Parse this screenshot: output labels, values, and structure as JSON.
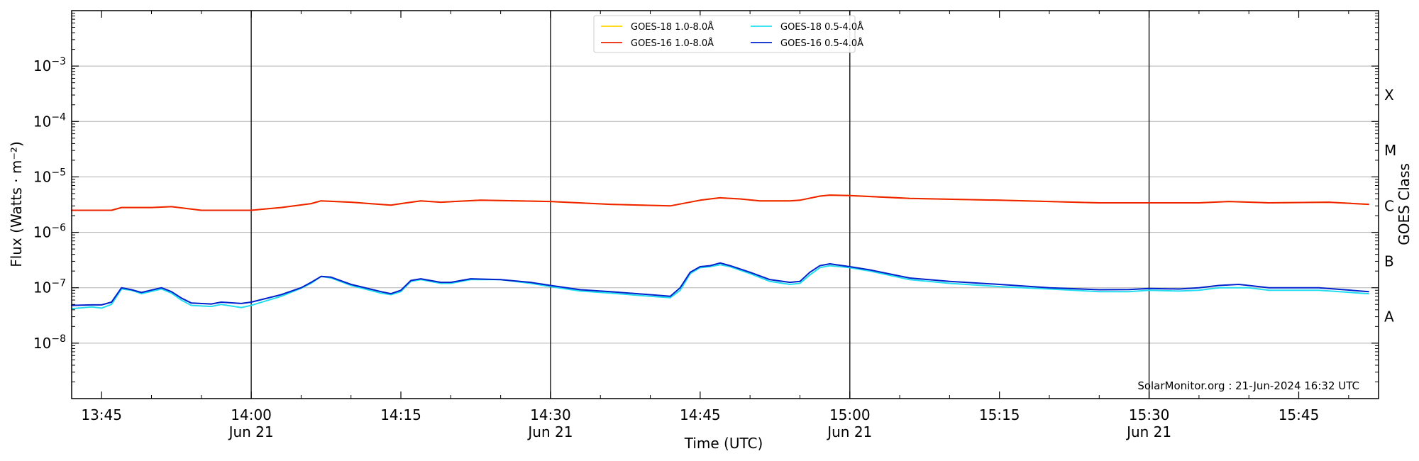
{
  "chart_data": {
    "type": "line",
    "xlabel": "Time (UTC)",
    "ylabel": "Flux (Watts · m⁻²)",
    "ylabel_right": "GOES Class",
    "ylog": true,
    "ylim": [
      1e-09,
      0.01
    ],
    "xlim": [
      "13:42",
      "15:53"
    ],
    "grid": "y-major",
    "legend_position": "top-center",
    "annotation": "SolarMonitor.org : 21-Jun-2024 16:32 UTC",
    "y_ticks": [
      {
        "value": 1e-08,
        "base": "10",
        "exp": "−8"
      },
      {
        "value": 1e-07,
        "base": "10",
        "exp": "−7"
      },
      {
        "value": 1e-06,
        "base": "10",
        "exp": "−6"
      },
      {
        "value": 1e-05,
        "base": "10",
        "exp": "−5"
      },
      {
        "value": 0.0001,
        "base": "10",
        "exp": "−4"
      },
      {
        "value": 0.001,
        "base": "10",
        "exp": "−3"
      }
    ],
    "x_ticks": [
      {
        "time": "13:45",
        "label": "13:45",
        "sub": ""
      },
      {
        "time": "14:00",
        "label": "14:00",
        "sub": "Jun 21"
      },
      {
        "time": "14:15",
        "label": "14:15",
        "sub": ""
      },
      {
        "time": "14:30",
        "label": "14:30",
        "sub": "Jun 21"
      },
      {
        "time": "14:45",
        "label": "14:45",
        "sub": ""
      },
      {
        "time": "15:00",
        "label": "15:00",
        "sub": "Jun 21"
      },
      {
        "time": "15:15",
        "label": "15:15",
        "sub": ""
      },
      {
        "time": "15:30",
        "label": "15:30",
        "sub": "Jun 21"
      },
      {
        "time": "15:45",
        "label": "15:45",
        "sub": ""
      }
    ],
    "day_lines": [
      "14:00",
      "14:30",
      "15:00",
      "15:30"
    ],
    "goes_classes": [
      {
        "label": "A",
        "value": 3e-08
      },
      {
        "label": "B",
        "value": 3e-07
      },
      {
        "label": "C",
        "value": 3e-06
      },
      {
        "label": "M",
        "value": 3e-05
      },
      {
        "label": "X",
        "value": 0.0003
      }
    ],
    "legend": [
      {
        "name": "GOES-18 1.0-8.0Å",
        "color": "#ffd700"
      },
      {
        "name": "GOES-18 0.5-4.0Å",
        "color": "#22ddee"
      },
      {
        "name": "GOES-16 1.0-8.0Å",
        "color": "#ee2200"
      },
      {
        "name": "GOES-16 0.5-4.0Å",
        "color": "#0022cc"
      }
    ],
    "series": [
      {
        "name": "GOES-18 1.0-8.0Å",
        "color": "#ffd700",
        "points": [
          [
            "13:42",
            2.5e-06
          ],
          [
            "13:46",
            2.5e-06
          ],
          [
            "13:47",
            2.8e-06
          ],
          [
            "13:50",
            2.8e-06
          ],
          [
            "13:52",
            2.9e-06
          ],
          [
            "13:55",
            2.5e-06
          ],
          [
            "14:00",
            2.5e-06
          ],
          [
            "14:03",
            2.8e-06
          ],
          [
            "14:06",
            3.3e-06
          ],
          [
            "14:07",
            3.7e-06
          ],
          [
            "14:10",
            3.5e-06
          ],
          [
            "14:14",
            3.1e-06
          ],
          [
            "14:15",
            3.3e-06
          ],
          [
            "14:17",
            3.7e-06
          ],
          [
            "14:19",
            3.5e-06
          ],
          [
            "14:23",
            3.8e-06
          ],
          [
            "14:30",
            3.6e-06
          ],
          [
            "14:36",
            3.2e-06
          ],
          [
            "14:42",
            3e-06
          ],
          [
            "14:45",
            3.8e-06
          ],
          [
            "14:46",
            4e-06
          ],
          [
            "14:47",
            4.2e-06
          ],
          [
            "14:49",
            4e-06
          ],
          [
            "14:51",
            3.7e-06
          ],
          [
            "14:54",
            3.7e-06
          ],
          [
            "14:55",
            3.8e-06
          ],
          [
            "14:57",
            4.5e-06
          ],
          [
            "14:58",
            4.7e-06
          ],
          [
            "15:00",
            4.6e-06
          ],
          [
            "15:06",
            4.1e-06
          ],
          [
            "15:15",
            3.8e-06
          ],
          [
            "15:25",
            3.4e-06
          ],
          [
            "15:30",
            3.4e-06
          ],
          [
            "15:35",
            3.4e-06
          ],
          [
            "15:38",
            3.6e-06
          ],
          [
            "15:42",
            3.4e-06
          ],
          [
            "15:48",
            3.5e-06
          ],
          [
            "15:52",
            3.2e-06
          ]
        ]
      },
      {
        "name": "GOES-16 1.0-8.0Å",
        "color": "#ee2200",
        "points": [
          [
            "13:42",
            2.5e-06
          ],
          [
            "13:46",
            2.5e-06
          ],
          [
            "13:47",
            2.8e-06
          ],
          [
            "13:50",
            2.8e-06
          ],
          [
            "13:52",
            2.9e-06
          ],
          [
            "13:55",
            2.5e-06
          ],
          [
            "14:00",
            2.5e-06
          ],
          [
            "14:03",
            2.8e-06
          ],
          [
            "14:06",
            3.3e-06
          ],
          [
            "14:07",
            3.7e-06
          ],
          [
            "14:10",
            3.5e-06
          ],
          [
            "14:14",
            3.1e-06
          ],
          [
            "14:15",
            3.3e-06
          ],
          [
            "14:17",
            3.7e-06
          ],
          [
            "14:19",
            3.5e-06
          ],
          [
            "14:23",
            3.8e-06
          ],
          [
            "14:30",
            3.6e-06
          ],
          [
            "14:36",
            3.2e-06
          ],
          [
            "14:42",
            3e-06
          ],
          [
            "14:45",
            3.8e-06
          ],
          [
            "14:46",
            4e-06
          ],
          [
            "14:47",
            4.2e-06
          ],
          [
            "14:49",
            4e-06
          ],
          [
            "14:51",
            3.7e-06
          ],
          [
            "14:54",
            3.7e-06
          ],
          [
            "14:55",
            3.8e-06
          ],
          [
            "14:57",
            4.5e-06
          ],
          [
            "14:58",
            4.7e-06
          ],
          [
            "15:00",
            4.6e-06
          ],
          [
            "15:06",
            4.1e-06
          ],
          [
            "15:15",
            3.8e-06
          ],
          [
            "15:25",
            3.4e-06
          ],
          [
            "15:30",
            3.4e-06
          ],
          [
            "15:35",
            3.4e-06
          ],
          [
            "15:38",
            3.6e-06
          ],
          [
            "15:42",
            3.4e-06
          ],
          [
            "15:48",
            3.5e-06
          ],
          [
            "15:52",
            3.2e-06
          ]
        ]
      },
      {
        "name": "GOES-18 0.5-4.0Å",
        "color": "#22ddee",
        "points": [
          [
            "13:42",
            4.2e-08
          ],
          [
            "13:44",
            4.5e-08
          ],
          [
            "13:45",
            4.3e-08
          ],
          [
            "13:46",
            5e-08
          ],
          [
            "13:47",
            9.5e-08
          ],
          [
            "13:48",
            9e-08
          ],
          [
            "13:49",
            7.8e-08
          ],
          [
            "13:51",
            9.5e-08
          ],
          [
            "13:52",
            8e-08
          ],
          [
            "13:53",
            6e-08
          ],
          [
            "13:54",
            4.8e-08
          ],
          [
            "13:56",
            4.6e-08
          ],
          [
            "13:57",
            5e-08
          ],
          [
            "13:59",
            4.4e-08
          ],
          [
            "14:00",
            4.8e-08
          ],
          [
            "14:03",
            7e-08
          ],
          [
            "14:05",
            9.8e-08
          ],
          [
            "14:06",
            1.2e-07
          ],
          [
            "14:07",
            1.6e-07
          ],
          [
            "14:08",
            1.5e-07
          ],
          [
            "14:10",
            1.1e-07
          ],
          [
            "14:13",
            8e-08
          ],
          [
            "14:14",
            7.5e-08
          ],
          [
            "14:15",
            8.5e-08
          ],
          [
            "14:16",
            1.3e-07
          ],
          [
            "14:17",
            1.4e-07
          ],
          [
            "14:19",
            1.2e-07
          ],
          [
            "14:20",
            1.2e-07
          ],
          [
            "14:22",
            1.4e-07
          ],
          [
            "14:25",
            1.4e-07
          ],
          [
            "14:28",
            1.2e-07
          ],
          [
            "14:30",
            1.05e-07
          ],
          [
            "14:33",
            8.7e-08
          ],
          [
            "14:36",
            8e-08
          ],
          [
            "14:40",
            7e-08
          ],
          [
            "14:42",
            6.6e-08
          ],
          [
            "14:43",
            9e-08
          ],
          [
            "14:44",
            1.8e-07
          ],
          [
            "14:45",
            2.3e-07
          ],
          [
            "14:46",
            2.4e-07
          ],
          [
            "14:47",
            2.6e-07
          ],
          [
            "14:48",
            2.4e-07
          ],
          [
            "14:50",
            1.8e-07
          ],
          [
            "14:52",
            1.3e-07
          ],
          [
            "14:54",
            1.15e-07
          ],
          [
            "14:55",
            1.2e-07
          ],
          [
            "14:56",
            1.7e-07
          ],
          [
            "14:57",
            2.3e-07
          ],
          [
            "14:58",
            2.5e-07
          ],
          [
            "15:00",
            2.3e-07
          ],
          [
            "15:02",
            2e-07
          ],
          [
            "15:06",
            1.4e-07
          ],
          [
            "15:10",
            1.2e-07
          ],
          [
            "15:15",
            1.05e-07
          ],
          [
            "15:20",
            9.5e-08
          ],
          [
            "15:25",
            8.5e-08
          ],
          [
            "15:28",
            8.5e-08
          ],
          [
            "15:30",
            9e-08
          ],
          [
            "15:33",
            8.7e-08
          ],
          [
            "15:35",
            9e-08
          ],
          [
            "15:37",
            1e-07
          ],
          [
            "15:40",
            1e-07
          ],
          [
            "15:42",
            9e-08
          ],
          [
            "15:47",
            9e-08
          ],
          [
            "15:52",
            7.8e-08
          ]
        ]
      },
      {
        "name": "GOES-16 0.5-4.0Å",
        "color": "#0022cc",
        "points": [
          [
            "13:42",
            4.8e-08
          ],
          [
            "13:44",
            4.9e-08
          ],
          [
            "13:45",
            4.9e-08
          ],
          [
            "13:46",
            5.5e-08
          ],
          [
            "13:47",
            1e-07
          ],
          [
            "13:48",
            9.2e-08
          ],
          [
            "13:49",
            8.2e-08
          ],
          [
            "13:51",
            1e-07
          ],
          [
            "13:52",
            8.5e-08
          ],
          [
            "13:53",
            6.5e-08
          ],
          [
            "13:54",
            5.3e-08
          ],
          [
            "13:56",
            5.1e-08
          ],
          [
            "13:57",
            5.5e-08
          ],
          [
            "13:59",
            5.2e-08
          ],
          [
            "14:00",
            5.5e-08
          ],
          [
            "14:03",
            7.5e-08
          ],
          [
            "14:05",
            1e-07
          ],
          [
            "14:06",
            1.25e-07
          ],
          [
            "14:07",
            1.6e-07
          ],
          [
            "14:08",
            1.55e-07
          ],
          [
            "14:10",
            1.15e-07
          ],
          [
            "14:13",
            8.5e-08
          ],
          [
            "14:14",
            7.8e-08
          ],
          [
            "14:15",
            9e-08
          ],
          [
            "14:16",
            1.35e-07
          ],
          [
            "14:17",
            1.45e-07
          ],
          [
            "14:19",
            1.25e-07
          ],
          [
            "14:20",
            1.25e-07
          ],
          [
            "14:22",
            1.45e-07
          ],
          [
            "14:25",
            1.4e-07
          ],
          [
            "14:28",
            1.25e-07
          ],
          [
            "14:30",
            1.1e-07
          ],
          [
            "14:33",
            9.2e-08
          ],
          [
            "14:36",
            8.5e-08
          ],
          [
            "14:40",
            7.5e-08
          ],
          [
            "14:42",
            7e-08
          ],
          [
            "14:43",
            1e-07
          ],
          [
            "14:44",
            1.9e-07
          ],
          [
            "14:45",
            2.4e-07
          ],
          [
            "14:46",
            2.5e-07
          ],
          [
            "14:47",
            2.8e-07
          ],
          [
            "14:48",
            2.5e-07
          ],
          [
            "14:50",
            1.9e-07
          ],
          [
            "14:52",
            1.4e-07
          ],
          [
            "14:54",
            1.25e-07
          ],
          [
            "14:55",
            1.3e-07
          ],
          [
            "14:56",
            1.9e-07
          ],
          [
            "14:57",
            2.5e-07
          ],
          [
            "14:58",
            2.7e-07
          ],
          [
            "15:00",
            2.4e-07
          ],
          [
            "15:02",
            2.1e-07
          ],
          [
            "15:06",
            1.5e-07
          ],
          [
            "15:10",
            1.3e-07
          ],
          [
            "15:15",
            1.15e-07
          ],
          [
            "15:20",
            1e-07
          ],
          [
            "15:25",
            9.2e-08
          ],
          [
            "15:28",
            9.3e-08
          ],
          [
            "15:30",
            9.7e-08
          ],
          [
            "15:33",
            9.5e-08
          ],
          [
            "15:35",
            1e-07
          ],
          [
            "15:37",
            1.1e-07
          ],
          [
            "15:39",
            1.15e-07
          ],
          [
            "15:42",
            1e-07
          ],
          [
            "15:47",
            1e-07
          ],
          [
            "15:52",
            8.5e-08
          ]
        ]
      }
    ]
  }
}
